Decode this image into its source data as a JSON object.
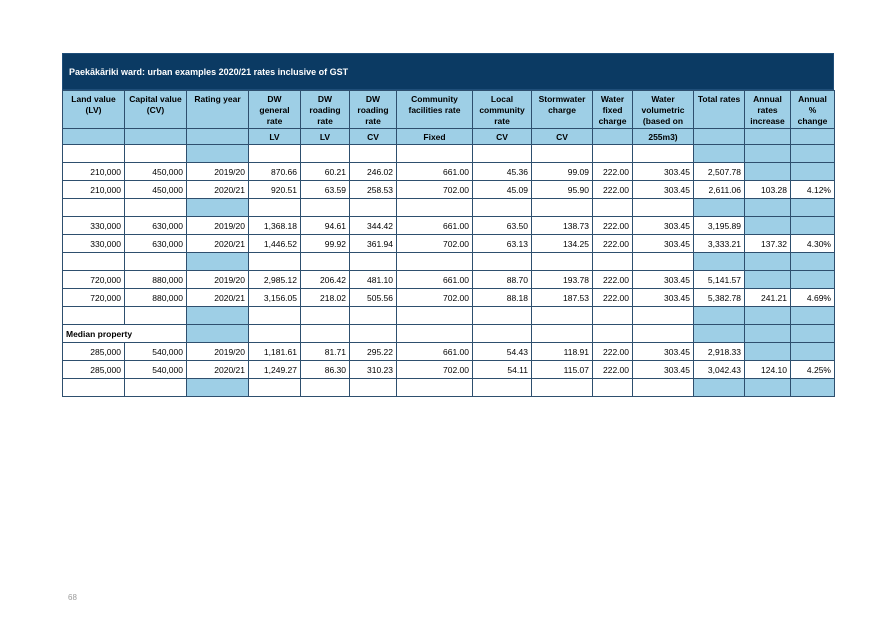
{
  "title": "Paekākāriki ward:  urban examples 2020/21 rates inclusive of GST",
  "headers": [
    "Land value (LV)",
    "Capital value (CV)",
    "Rating year",
    "DW general rate",
    "DW roading rate",
    "DW roading rate",
    "Community facilities rate",
    "Local community rate",
    "Stormwater charge",
    "Water fixed charge",
    "Water volumetric (based on",
    "Total rates",
    "Annual rates increase",
    "Annual % change"
  ],
  "units": [
    "",
    "",
    "",
    "LV",
    "LV",
    "CV",
    "Fixed",
    "CV",
    "CV",
    "",
    "255m3)",
    "",
    "",
    ""
  ],
  "groups": [
    {
      "label": "",
      "rows": [
        [
          "210,000",
          "450,000",
          "2019/20",
          "870.66",
          "60.21",
          "246.02",
          "661.00",
          "45.36",
          "99.09",
          "222.00",
          "303.45",
          "2,507.78",
          "",
          ""
        ],
        [
          "210,000",
          "450,000",
          "2020/21",
          "920.51",
          "63.59",
          "258.53",
          "702.00",
          "45.09",
          "95.90",
          "222.00",
          "303.45",
          "2,611.06",
          "103.28",
          "4.12%"
        ]
      ]
    },
    {
      "label": "",
      "rows": [
        [
          "330,000",
          "630,000",
          "2019/20",
          "1,368.18",
          "94.61",
          "344.42",
          "661.00",
          "63.50",
          "138.73",
          "222.00",
          "303.45",
          "3,195.89",
          "",
          ""
        ],
        [
          "330,000",
          "630,000",
          "2020/21",
          "1,446.52",
          "99.92",
          "361.94",
          "702.00",
          "63.13",
          "134.25",
          "222.00",
          "303.45",
          "3,333.21",
          "137.32",
          "4.30%"
        ]
      ]
    },
    {
      "label": "",
      "rows": [
        [
          "720,000",
          "880,000",
          "2019/20",
          "2,985.12",
          "206.42",
          "481.10",
          "661.00",
          "88.70",
          "193.78",
          "222.00",
          "303.45",
          "5,141.57",
          "",
          ""
        ],
        [
          "720,000",
          "880,000",
          "2020/21",
          "3,156.05",
          "218.02",
          "505.56",
          "702.00",
          "88.18",
          "187.53",
          "222.00",
          "303.45",
          "5,382.78",
          "241.21",
          "4.69%"
        ]
      ]
    },
    {
      "label": "",
      "rows": []
    },
    {
      "label": "Median property",
      "rows": [
        [
          "285,000",
          "540,000",
          "2019/20",
          "1,181.61",
          "81.71",
          "295.22",
          "661.00",
          "54.43",
          "118.91",
          "222.00",
          "303.45",
          "2,918.33",
          "",
          ""
        ],
        [
          "285,000",
          "540,000",
          "2020/21",
          "1,249.27",
          "86.30",
          "310.23",
          "702.00",
          "54.11",
          "115.07",
          "222.00",
          "303.45",
          "3,042.43",
          "124.10",
          "4.25%"
        ]
      ]
    }
  ],
  "page_number": "68",
  "colors": {
    "title_bg": "#0b3a63",
    "header_bg": "#9ecfe6",
    "border": "#2e4f6e"
  }
}
